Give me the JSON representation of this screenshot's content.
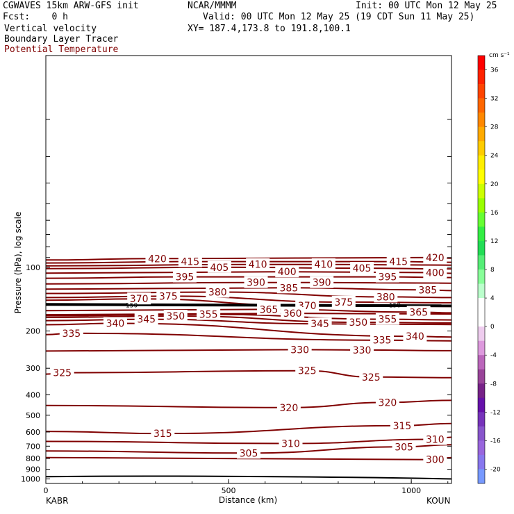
{
  "header": {
    "model": "CGWAVES 15km ARW-GFS init",
    "org": "NCAR/MMMM",
    "init": "Init: 00 UTC Mon 12 May 25",
    "fcst": "Fcst:    0 h",
    "valid": "Valid: 00 UTC Mon 12 May 25 (19 CDT Sun 11 May 25)",
    "field1": "Vertical velocity",
    "xy": "XY= 187.4,173.8 to 191.8,100.1",
    "field2": "Boundary Layer Tracer",
    "field3": "Potential Temperature"
  },
  "colors": {
    "contour": "#800000",
    "field3_title": "#800000"
  },
  "chart_data": {
    "type": "contour",
    "title": "",
    "xlabel": "Distance (km)",
    "ylabel": "Pressure (hPa), log scale",
    "xlim": [
      0,
      1110
    ],
    "ylim": [
      1050,
      10
    ],
    "y_scale": "log",
    "x_ticks": [
      0,
      500,
      1000
    ],
    "y_ticks": [
      100,
      200,
      300,
      400,
      500,
      600,
      700,
      800,
      900,
      1000
    ],
    "x_endpoints": {
      "left": "KABR",
      "right": "KOUN"
    },
    "potential_temperature_contours": [
      {
        "level": 420,
        "labels": [
          {
            "x": 305,
            "p": 91
          },
          {
            "x": 1065,
            "p": 90
          }
        ]
      },
      {
        "level": 415,
        "labels": [
          {
            "x": 395,
            "p": 94
          },
          {
            "x": 965,
            "p": 94
          }
        ]
      },
      {
        "level": 410,
        "labels": [
          {
            "x": 580,
            "p": 97
          },
          {
            "x": 760,
            "p": 97
          }
        ]
      },
      {
        "level": 405,
        "labels": [
          {
            "x": 475,
            "p": 100
          },
          {
            "x": 865,
            "p": 101
          }
        ]
      },
      {
        "level": 400,
        "labels": [
          {
            "x": 660,
            "p": 105
          },
          {
            "x": 1065,
            "p": 106
          }
        ]
      },
      {
        "level": 395,
        "labels": [
          {
            "x": 380,
            "p": 111
          },
          {
            "x": 935,
            "p": 111
          }
        ]
      },
      {
        "level": 390,
        "labels": [
          {
            "x": 575,
            "p": 118
          },
          {
            "x": 755,
            "p": 118
          }
        ]
      },
      {
        "level": 385,
        "labels": [
          {
            "x": 665,
            "p": 125
          },
          {
            "x": 1045,
            "p": 128
          }
        ]
      },
      {
        "level": 380,
        "labels": [
          {
            "x": 470,
            "p": 131
          },
          {
            "x": 930,
            "p": 138
          }
        ]
      },
      {
        "level": 375,
        "labels": [
          {
            "x": 335,
            "p": 137
          },
          {
            "x": 815,
            "p": 146
          }
        ]
      },
      {
        "level": 370,
        "labels": [
          {
            "x": 255,
            "p": 141
          },
          {
            "x": 715,
            "p": 152
          }
        ]
      },
      {
        "level": 365,
        "labels": [
          {
            "x": 610,
            "p": 158
          },
          {
            "x": 1020,
            "p": 163
          }
        ]
      },
      {
        "level": 360,
        "labels": [
          {
            "x": 675,
            "p": 165
          }
        ]
      },
      {
        "level": 355,
        "labels": [
          {
            "x": 445,
            "p": 167
          },
          {
            "x": 935,
            "p": 176
          }
        ]
      },
      {
        "level": 350,
        "labels": [
          {
            "x": 355,
            "p": 170
          },
          {
            "x": 855,
            "p": 182
          }
        ]
      },
      {
        "level": 345,
        "labels": [
          {
            "x": 275,
            "p": 176
          },
          {
            "x": 750,
            "p": 185
          }
        ]
      },
      {
        "level": 340,
        "labels": [
          {
            "x": 190,
            "p": 184
          },
          {
            "x": 1010,
            "p": 212
          }
        ]
      },
      {
        "level": 335,
        "labels": [
          {
            "x": 70,
            "p": 205
          },
          {
            "x": 920,
            "p": 221
          }
        ]
      },
      {
        "level": 330,
        "labels": [
          {
            "x": 695,
            "p": 245
          },
          {
            "x": 865,
            "p": 246
          }
        ]
      },
      {
        "level": 325,
        "labels": [
          {
            "x": 45,
            "p": 315
          },
          {
            "x": 715,
            "p": 308
          },
          {
            "x": 890,
            "p": 330
          }
        ]
      },
      {
        "level": 320,
        "labels": [
          {
            "x": 665,
            "p": 460
          },
          {
            "x": 935,
            "p": 435
          }
        ]
      },
      {
        "level": 315,
        "labels": [
          {
            "x": 320,
            "p": 610
          },
          {
            "x": 975,
            "p": 560
          }
        ]
      },
      {
        "level": 310,
        "labels": [
          {
            "x": 670,
            "p": 680
          },
          {
            "x": 1065,
            "p": 650
          }
        ]
      },
      {
        "level": 305,
        "labels": [
          {
            "x": 555,
            "p": 755
          },
          {
            "x": 980,
            "p": 705
          }
        ]
      },
      {
        "level": 300,
        "labels": [
          {
            "x": 1065,
            "p": 810
          }
        ]
      }
    ],
    "thick_line_labels": [
      {
        "text": "150",
        "x": 235,
        "p": 151
      },
      {
        "text": "150",
        "x": 955,
        "p": 151
      }
    ],
    "colorbar": {
      "title": "cm s⁻¹",
      "levels": [
        36,
        32,
        28,
        24,
        20,
        16,
        12,
        8,
        4,
        0,
        -4,
        -8,
        -12,
        -16,
        -20
      ],
      "colors": [
        "#ff0000",
        "#ff2200",
        "#ff4400",
        "#ff6600",
        "#ff8800",
        "#ffaa00",
        "#ffcc00",
        "#ffee00",
        "#ffff00",
        "#ccff00",
        "#99ff00",
        "#66ff33",
        "#33ee44",
        "#22dd55",
        "#55ee77",
        "#88ff99",
        "#bbffcc",
        "#ffffff",
        "#ffffff",
        "#eeccee",
        "#dd99dd",
        "#bb66bb",
        "#994499",
        "#772288",
        "#6611aa",
        "#7733bb",
        "#8855cc",
        "#9966dd",
        "#8877ee",
        "#7799ff"
      ]
    }
  }
}
